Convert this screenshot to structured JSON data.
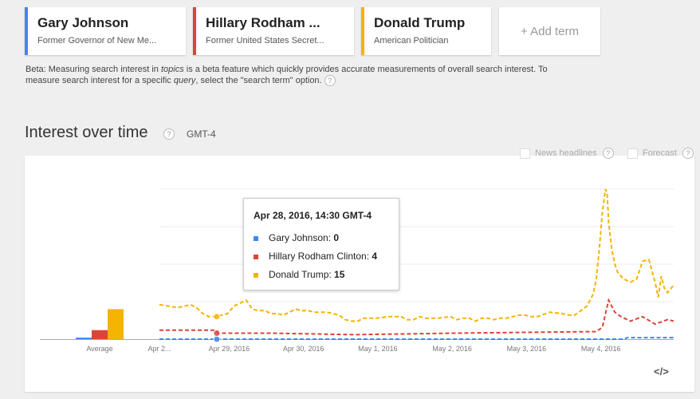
{
  "terms": [
    {
      "title": "Gary Johnson",
      "subtitle": "Former Governor of New Me...",
      "color": "#4285f4"
    },
    {
      "title": "Hillary Rodham ...",
      "subtitle": "Former United States Secret...",
      "color": "#db4437"
    },
    {
      "title": "Donald Trump",
      "subtitle": "American Politician",
      "color": "#f4b400"
    }
  ],
  "add_term_label": "+ Add term",
  "beta": {
    "part1": "Beta: Measuring search interest in ",
    "em1": "topics",
    "part2": " is a beta feature which quickly provides accurate measurements of overall search interest. To measure search interest for a specific ",
    "em2": "query",
    "part3": ", select the \"search term\" option."
  },
  "section": {
    "title": "Interest over time",
    "timezone": "GMT-4",
    "help_symbol": "?"
  },
  "checkboxes": {
    "news_headlines": "News headlines",
    "forecast": "Forecast"
  },
  "chart_data": {
    "type": "line",
    "averages_label": "Average",
    "averages": [
      {
        "name": "Gary Johnson",
        "value": 1
      },
      {
        "name": "Hillary Rodham Clinton",
        "value": 6
      },
      {
        "name": "Donald Trump",
        "value": 20
      }
    ],
    "x_tick_labels": [
      "Apr 2...",
      "Apr 29, 2016",
      "Apr 30, 2016",
      "May 1, 2016",
      "May 2, 2016",
      "May 3, 2016",
      "May 4, 2016"
    ],
    "x_ticks_hour": [
      0,
      22.5,
      46.5,
      70.5,
      94.5,
      118.5,
      142.5
    ],
    "x_range_hours": [
      0,
      166
    ],
    "ylim": [
      0,
      100
    ],
    "series": [
      {
        "name": "Gary Johnson",
        "color": "#4285f4",
        "x": [
          0,
          150,
          151,
          160,
          166
        ],
        "values": [
          0,
          0,
          1,
          1,
          1
        ]
      },
      {
        "name": "Hillary Rodham Clinton",
        "color": "#db4437",
        "x": [
          0,
          18,
          19,
          36,
          63,
          95,
          139,
          141,
          143,
          144,
          145,
          146,
          147,
          149,
          152,
          156,
          160,
          164,
          166
        ],
        "values": [
          6,
          6,
          4,
          4,
          3,
          4,
          5,
          5,
          8,
          17,
          26,
          22,
          18,
          15,
          12,
          15,
          10,
          13,
          12
        ]
      },
      {
        "name": "Donald Trump",
        "color": "#f4b400",
        "x": [
          0,
          6,
          10,
          12,
          14,
          16,
          18,
          22,
          24,
          28,
          30,
          32,
          34,
          36,
          38,
          40,
          44,
          46,
          48,
          50,
          54,
          58,
          60,
          62,
          64,
          66,
          70,
          74,
          78,
          80,
          82,
          84,
          86,
          90,
          94,
          96,
          98,
          100,
          102,
          104,
          106,
          108,
          110,
          112,
          114,
          116,
          118,
          120,
          122,
          126,
          130,
          132,
          134,
          136,
          138,
          140,
          141,
          142,
          143,
          144,
          144.5,
          145,
          146,
          147,
          148,
          150,
          152,
          154,
          156,
          158,
          160,
          161,
          162,
          163,
          164,
          166
        ],
        "values": [
          23,
          21,
          23,
          21,
          17,
          15,
          15,
          17,
          22,
          26,
          20,
          19,
          19,
          17,
          17,
          16,
          20,
          19,
          19,
          18,
          18,
          16,
          13,
          12,
          12,
          14,
          14,
          15,
          15,
          13,
          13,
          15,
          14,
          14,
          15,
          13,
          14,
          14,
          12,
          14,
          14,
          13,
          14,
          14,
          15,
          16,
          16,
          15,
          15,
          18,
          17,
          16,
          16,
          19,
          22,
          30,
          40,
          60,
          85,
          100,
          97,
          78,
          60,
          50,
          44,
          40,
          38,
          40,
          52,
          53,
          38,
          28,
          42,
          34,
          31,
          36
        ]
      }
    ],
    "tooltip": {
      "title": "Apr 28, 2016, 14:30 GMT-4",
      "hour": 18.5,
      "entries": [
        {
          "name": "Gary Johnson",
          "value": "0",
          "color": "#4285f4"
        },
        {
          "name": "Hillary Rodham Clinton",
          "value": "4",
          "color": "#db4437"
        },
        {
          "name": "Donald Trump",
          "value": "15",
          "color": "#f4b400"
        }
      ]
    }
  },
  "embed_label": "</>"
}
